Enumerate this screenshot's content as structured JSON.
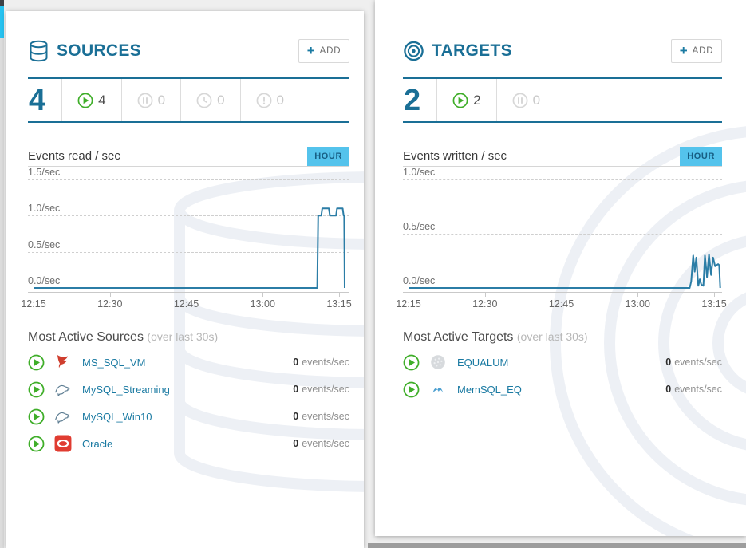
{
  "colors": {
    "brand_teal": "#1a6f96",
    "badge_blue": "#54c3ec",
    "chart_line": "#2b7da6",
    "running_green": "#3fae29",
    "inactive_gray": "#d7d7d7",
    "bottom_bar_gray": "#9d9d9d",
    "edge_cyan": "#27c2f0"
  },
  "sources": {
    "title": "SOURCES",
    "icon": "database-icon",
    "add_button": {
      "plus": "+",
      "label": "ADD"
    },
    "total": "4",
    "statuses": [
      {
        "icon": "play-icon",
        "state": "running",
        "count": "4"
      },
      {
        "icon": "pause-icon",
        "state": "paused",
        "count": "0"
      },
      {
        "icon": "clock-icon",
        "state": "scheduled",
        "count": "0"
      },
      {
        "icon": "alert-icon",
        "state": "error",
        "count": "0"
      }
    ],
    "list_title": "Most Active Sources",
    "list_subtitle": "(over last 30s)",
    "items": [
      {
        "status_icon": "play-icon",
        "vendor_icon": "mssql-icon",
        "name": "MS_SQL_VM",
        "rate_value": "0",
        "rate_unit": "events/sec"
      },
      {
        "status_icon": "play-icon",
        "vendor_icon": "mysql-icon",
        "name": "MySQL_Streaming",
        "rate_value": "0",
        "rate_unit": "events/sec"
      },
      {
        "status_icon": "play-icon",
        "vendor_icon": "mysql-icon",
        "name": "MySQL_Win10",
        "rate_value": "0",
        "rate_unit": "events/sec"
      },
      {
        "status_icon": "play-icon",
        "vendor_icon": "oracle-icon",
        "name": "Oracle",
        "rate_value": "0",
        "rate_unit": "events/sec"
      }
    ]
  },
  "targets": {
    "title": "TARGETS",
    "icon": "target-icon",
    "add_button": {
      "plus": "+",
      "label": "ADD"
    },
    "total": "2",
    "statuses": [
      {
        "icon": "play-icon",
        "state": "running",
        "count": "2"
      },
      {
        "icon": "pause-icon",
        "state": "paused",
        "count": "0"
      }
    ],
    "list_title": "Most Active Targets",
    "list_subtitle": "(over last 30s)",
    "items": [
      {
        "status_icon": "play-icon",
        "vendor_icon": "equalum-icon",
        "name": "EQUALUM",
        "rate_value": "0",
        "rate_unit": "events/sec"
      },
      {
        "status_icon": "play-icon",
        "vendor_icon": "memsql-icon",
        "name": "MemSQL_EQ",
        "rate_value": "0",
        "rate_unit": "events/sec"
      }
    ]
  },
  "chart_data": [
    {
      "type": "line",
      "title": "Events read / sec",
      "interval_label": "HOUR",
      "x_tick_labels": [
        "12:15",
        "12:30",
        "12:45",
        "13:00",
        "13:15"
      ],
      "x_tick_minutes": [
        0,
        15,
        30,
        45,
        60
      ],
      "x_range_minutes": [
        0,
        62
      ],
      "y_tick_labels": [
        "1.5/sec",
        "1.0/sec",
        "0.5/sec",
        "0.0/sec"
      ],
      "y_tick_values": [
        1.5,
        1.0,
        0.5,
        0.0
      ],
      "y_range": [
        0,
        1.5
      ],
      "grid": "dashed",
      "line_color": "#2b7da6",
      "series": [
        {
          "name": "events_read_per_sec",
          "points": [
            [
              0,
              0
            ],
            [
              55.7,
              0
            ],
            [
              55.9,
              1.0
            ],
            [
              56.5,
              1.0
            ],
            [
              56.7,
              1.1
            ],
            [
              58.0,
              1.1
            ],
            [
              58.2,
              1.0
            ],
            [
              59.4,
              1.0
            ],
            [
              59.6,
              1.1
            ],
            [
              60.7,
              1.1
            ],
            [
              60.9,
              1.0
            ],
            [
              61.0,
              1.0
            ],
            [
              61.1,
              0
            ]
          ]
        }
      ]
    },
    {
      "type": "line",
      "title": "Events written / sec",
      "interval_label": "HOUR",
      "x_tick_labels": [
        "12:15",
        "12:30",
        "12:45",
        "13:00",
        "13:15"
      ],
      "x_tick_minutes": [
        0,
        15,
        30,
        45,
        60
      ],
      "x_range_minutes": [
        0,
        62
      ],
      "y_tick_labels": [
        "1.0/sec",
        "0.5/sec",
        "0.0/sec"
      ],
      "y_tick_values": [
        1.0,
        0.5,
        0.0
      ],
      "y_range": [
        0,
        1.0
      ],
      "grid": "dashed",
      "line_color": "#2b7da6",
      "series": [
        {
          "name": "events_written_per_sec",
          "points": [
            [
              0,
              0
            ],
            [
              55.2,
              0
            ],
            [
              55.5,
              0.06
            ],
            [
              55.9,
              0.3
            ],
            [
              56.2,
              0.15
            ],
            [
              56.5,
              0.28
            ],
            [
              56.9,
              0.02
            ],
            [
              57.2,
              0.08
            ],
            [
              57.5,
              0.03
            ],
            [
              57.9,
              0.02
            ],
            [
              58.2,
              0.3
            ],
            [
              58.6,
              0.1
            ],
            [
              59.0,
              0.31
            ],
            [
              59.4,
              0.12
            ],
            [
              59.8,
              0.28
            ],
            [
              60.2,
              0.2
            ],
            [
              60.8,
              0.22
            ],
            [
              61.0,
              0.21
            ],
            [
              61.2,
              0
            ]
          ]
        }
      ]
    }
  ]
}
